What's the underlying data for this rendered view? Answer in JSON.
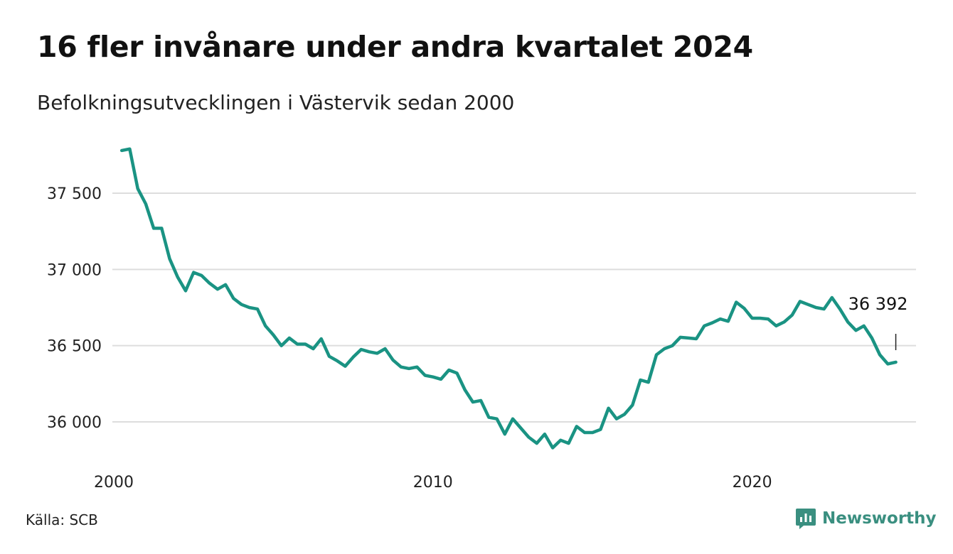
{
  "title": "16 fler invånare under andra kvartalet 2024",
  "subtitle": "Befolkningsutvecklingen i Västervik sedan 2000",
  "source": "Källa: SCB",
  "brand": {
    "name": "Newsworthy",
    "icon": "newsworthy-logo-icon",
    "color": "#3a8f80"
  },
  "chart_data": {
    "type": "line",
    "title": "16 fler invånare under andra kvartalet 2024",
    "subtitle": "Befolkningsutvecklingen i Västervik sedan 2000",
    "xlabel": "",
    "ylabel": "",
    "x_range": [
      2000.0,
      2025.0
    ],
    "ylim": [
      35800,
      37850
    ],
    "grid": true,
    "line_color": "#1a9383",
    "x_ticks": [
      {
        "value": 2000,
        "label": "2000"
      },
      {
        "value": 2010,
        "label": "2010"
      },
      {
        "value": 2020,
        "label": "2020"
      }
    ],
    "y_ticks": [
      {
        "value": 36000,
        "label": "36 000"
      },
      {
        "value": 36500,
        "label": "36 500"
      },
      {
        "value": 37000,
        "label": "37 000"
      },
      {
        "value": 37500,
        "label": "37 500"
      }
    ],
    "series": [
      {
        "x_start": 2000.25,
        "x_step": 0.25,
        "values": [
          37780,
          37790,
          37530,
          37430,
          37270,
          37270,
          37070,
          36950,
          36860,
          36980,
          36960,
          36910,
          36870,
          36900,
          36810,
          36770,
          36750,
          36740,
          36630,
          36570,
          36500,
          36550,
          36510,
          36510,
          36480,
          36545,
          36430,
          36400,
          36365,
          36425,
          36475,
          36460,
          36450,
          36480,
          36405,
          36360,
          36350,
          36360,
          36305,
          36295,
          36280,
          36340,
          36320,
          36210,
          36130,
          36140,
          36030,
          36020,
          35920,
          36020,
          35960,
          35900,
          35860,
          35920,
          35830,
          35880,
          35860,
          35970,
          35930,
          35930,
          35950,
          36090,
          36020,
          36050,
          36110,
          36275,
          36260,
          36440,
          36480,
          36500,
          36555,
          36550,
          36545,
          36630,
          36650,
          36675,
          36660,
          36785,
          36745,
          36680,
          36680,
          36675,
          36630,
          36655,
          36700,
          36790,
          36770,
          36750,
          36740,
          36815,
          36740,
          36655,
          36600,
          36630,
          36550,
          36440,
          36380,
          36392
        ]
      }
    ],
    "end_annotation": {
      "value": 36392,
      "label": "36 392"
    }
  }
}
